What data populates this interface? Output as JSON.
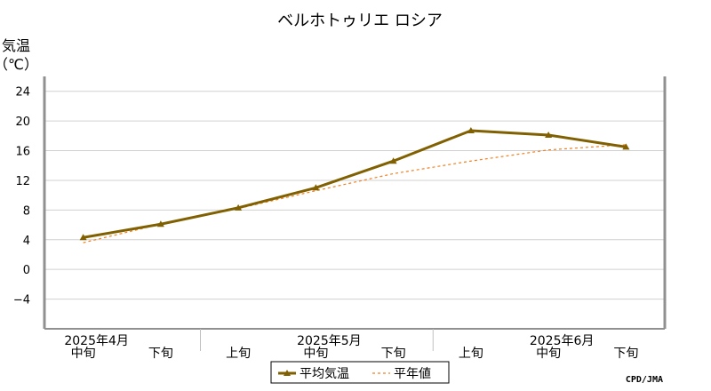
{
  "chart_data": {
    "type": "line",
    "title": "ベルホトゥリエ ロシア",
    "ylabel": "気温",
    "yunit": "（℃）",
    "ylim": [
      -8,
      26
    ],
    "yticks": [
      24,
      20,
      16,
      12,
      8,
      4,
      0,
      -4
    ],
    "ytick_labels": [
      "24",
      "20",
      "16",
      "12",
      "8",
      "4",
      "0",
      "−4"
    ],
    "grid": true,
    "categories": [
      "中旬",
      "下旬",
      "上旬",
      "中旬",
      "下旬",
      "上旬",
      "中旬",
      "下旬"
    ],
    "month_labels": [
      {
        "label": "2025年4月",
        "index": 0
      },
      {
        "label": "2025年5月",
        "index": 3
      },
      {
        "label": "2025年6月",
        "index": 6
      }
    ],
    "series": [
      {
        "name": "平均気温",
        "values": [
          4.3,
          6.1,
          8.3,
          11.0,
          14.6,
          18.7,
          18.1,
          16.5
        ],
        "color": "#806000",
        "style": "solid",
        "marker": "triangle"
      },
      {
        "name": "平年値",
        "values": [
          3.6,
          6.1,
          8.2,
          10.6,
          12.9,
          14.6,
          16.1,
          16.8
        ],
        "color": "#f08020",
        "style": "dashed"
      }
    ],
    "legend": "bottom-center",
    "credit": "CPD/JMA"
  }
}
